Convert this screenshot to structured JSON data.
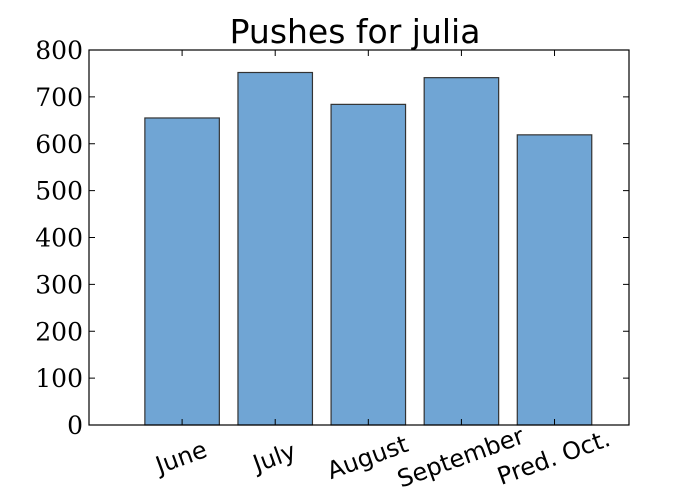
{
  "chart_data": {
    "type": "bar",
    "title": "Pushes for julia",
    "xlabel": "",
    "ylabel": "",
    "categories": [
      "June",
      "July",
      "August",
      "September",
      "Pred. Oct."
    ],
    "values": [
      655,
      752,
      684,
      741,
      619
    ],
    "ylim": [
      0,
      800
    ],
    "yticks": [
      0,
      100,
      200,
      300,
      400,
      500,
      600,
      700,
      800
    ],
    "xtick_rotation_deg": 20,
    "grid": false,
    "bar_color": "#70a5d4",
    "bar_edge_color": "#333333"
  }
}
